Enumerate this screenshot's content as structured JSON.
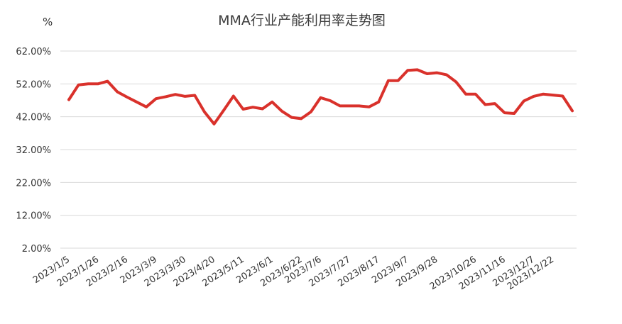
{
  "chart_data": {
    "type": "line",
    "title": "MMA行业产能利用率走势图",
    "ylabel": "%",
    "ylim": [
      2,
      62
    ],
    "yticks": [
      "62.00%",
      "52.00%",
      "42.00%",
      "32.00%",
      "22.00%",
      "12.00%",
      "2.00%"
    ],
    "ytick_values": [
      62,
      52,
      42,
      32,
      22,
      12,
      2
    ],
    "xtick_labels": [
      "2023/1/5",
      "2023/1/26",
      "2023/2/16",
      "2023/3/9",
      "2023/3/30",
      "2023/4/20",
      "2023/5/11",
      "2023/6/1",
      "2023/6/22",
      "2023/7/6",
      "2023/7/27",
      "2023/8/17",
      "2023/9/7",
      "2023/9/28",
      "2023/10/26",
      "2023/11/16",
      "2023/12/7",
      "2023/12/22"
    ],
    "xtick_index": [
      0,
      3,
      6,
      9,
      12,
      15,
      18,
      21,
      24,
      26,
      29,
      32,
      35,
      38,
      42,
      45,
      48,
      50
    ],
    "grid": true,
    "legend": "none",
    "color": "#d9312b",
    "series": [
      {
        "values": [
          47.2,
          51.7,
          52.0,
          52.0,
          52.8,
          49.6,
          48.0,
          46.5,
          45.0,
          47.5,
          48.1,
          48.8,
          48.2,
          48.5,
          43.5,
          39.8,
          44.0,
          48.3,
          44.3,
          44.9,
          44.4,
          46.5,
          43.7,
          41.8,
          41.4,
          43.5,
          47.8,
          46.9,
          45.3,
          45.3,
          45.3,
          45.0,
          46.5,
          53.0,
          53.0,
          56.1,
          56.3,
          55.1,
          55.4,
          54.8,
          52.6,
          48.9,
          48.9,
          45.7,
          46.0,
          43.2,
          43.0,
          46.8,
          48.2,
          48.9,
          48.6,
          48.3,
          43.8
        ]
      }
    ]
  }
}
